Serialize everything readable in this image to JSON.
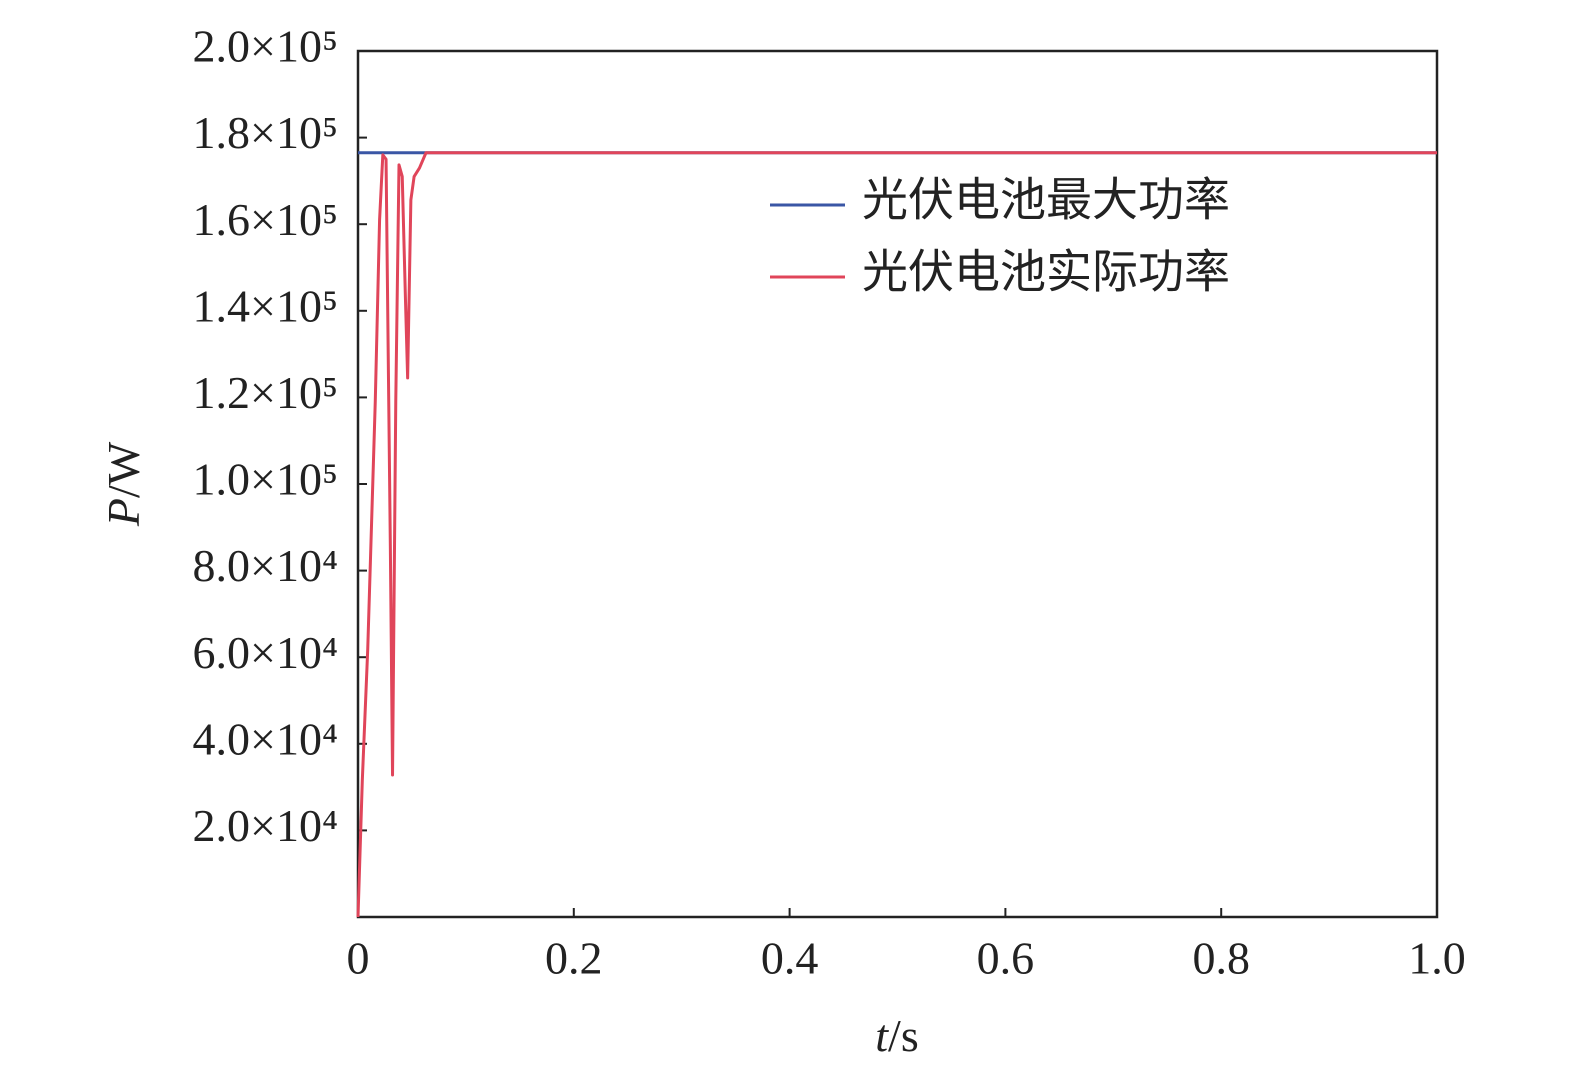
{
  "chart_data": {
    "type": "line",
    "x_label": "t/s",
    "y_label": "P/W",
    "xlim": [
      0,
      1
    ],
    "xticks": [
      0,
      0.2,
      0.4,
      0.6,
      0.8,
      {
        "value": 1,
        "label": "1.0"
      }
    ],
    "ylim": [
      0,
      200000
    ],
    "yticks": [
      {
        "value": 20000,
        "label": "2.0×10⁴"
      },
      {
        "value": 40000,
        "label": "4.0×10⁴"
      },
      {
        "value": 60000,
        "label": "6.0×10⁴"
      },
      {
        "value": 80000,
        "label": "8.0×10⁴"
      },
      {
        "value": 100000,
        "label": "1.0×10⁵"
      },
      {
        "value": 120000,
        "label": "1.2×10⁵"
      },
      {
        "value": 140000,
        "label": "1.4×10⁵"
      },
      {
        "value": 160000,
        "label": "1.6×10⁵"
      },
      {
        "value": 180000,
        "label": "1.8×10⁵"
      },
      {
        "value": 200000,
        "label": "2.0×10⁵"
      }
    ],
    "legend": "upper-right",
    "series": [
      {
        "name": "光伏电池最大功率",
        "color": "#3a56a5",
        "x": [
          0,
          1
        ],
        "values": [
          176500,
          176500
        ]
      },
      {
        "name": "光伏电池实际功率",
        "color": "#e0455a",
        "x": [
          0,
          0.004,
          0.009,
          0.016,
          0.02,
          0.023,
          0.026,
          0.03,
          0.032,
          0.035,
          0.038,
          0.041,
          0.044,
          0.046,
          0.049,
          0.052,
          0.057,
          0.063,
          1
        ],
        "values": [
          0,
          31600,
          61700,
          119000,
          161000,
          176000,
          175000,
          85000,
          32800,
          119000,
          173700,
          171000,
          142500,
          124500,
          165600,
          171000,
          173000,
          176500,
          176500
        ]
      }
    ]
  }
}
